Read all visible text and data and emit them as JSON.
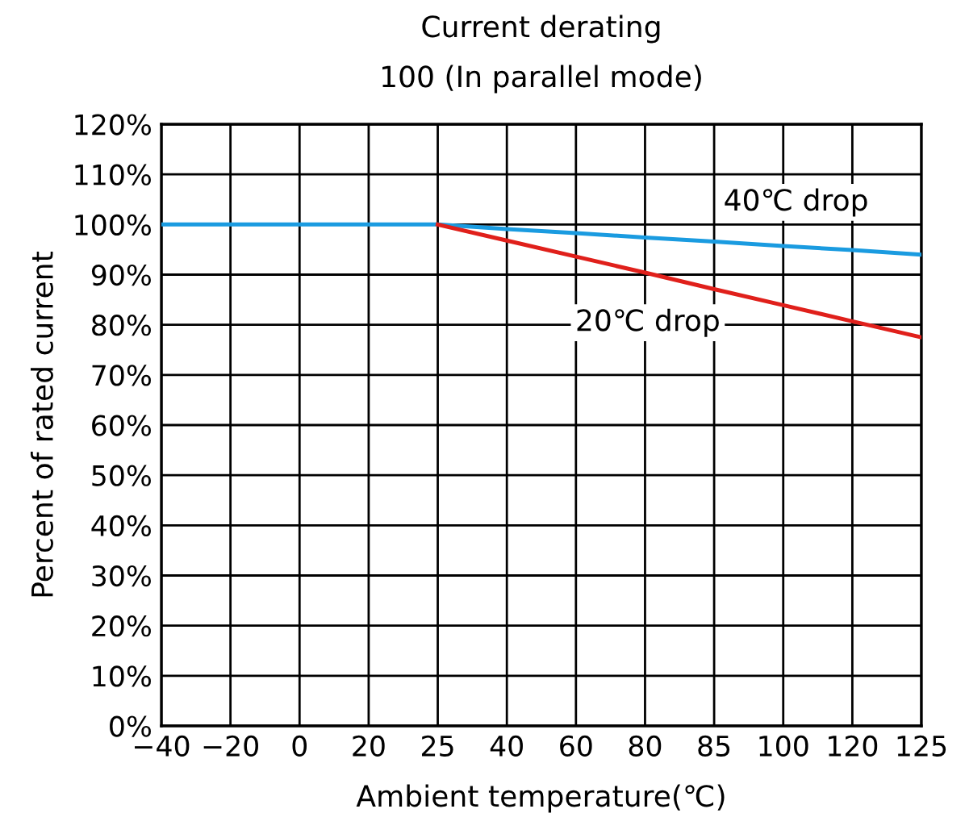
{
  "chart_data": {
    "type": "line",
    "title": "Current derating",
    "subtitle": "100 (In parallel mode)",
    "xlabel": "Ambient temperature(℃)",
    "ylabel": "Percent of rated current",
    "categories": [
      "−40",
      "−20",
      "0",
      "20",
      "25",
      "40",
      "60",
      "80",
      "85",
      "100",
      "120",
      "125"
    ],
    "series": [
      {
        "color": "#1a9be0",
        "values": [
          100,
          100,
          100,
          100,
          100,
          99.1,
          98.3,
          97.4,
          96.6,
          95.7,
          94.9,
          94
        ]
      },
      {
        "color": "#e0201b",
        "values": [
          null,
          null,
          null,
          null,
          100,
          96.8,
          93.6,
          90.4,
          87.1,
          83.9,
          80.7,
          77.5
        ]
      }
    ],
    "annotations": [
      "40℃ drop",
      "20℃ drop"
    ],
    "ylim": [
      0,
      120
    ],
    "yticks": [
      {
        "value": 0,
        "label": "0%"
      },
      {
        "value": 10,
        "label": "10%"
      },
      {
        "value": 20,
        "label": "20%"
      },
      {
        "value": 30,
        "label": "30%"
      },
      {
        "value": 40,
        "label": "40%"
      },
      {
        "value": 50,
        "label": "50%"
      },
      {
        "value": 60,
        "label": "60%"
      },
      {
        "value": 70,
        "label": "70%"
      },
      {
        "value": 80,
        "label": "80%"
      },
      {
        "value": 90,
        "label": "90%"
      },
      {
        "value": 100,
        "label": "100%"
      },
      {
        "value": 110,
        "label": "110%"
      },
      {
        "value": 120,
        "label": "120%"
      }
    ],
    "grid": true,
    "legend": false,
    "marker": "none",
    "line_style": "solid"
  }
}
